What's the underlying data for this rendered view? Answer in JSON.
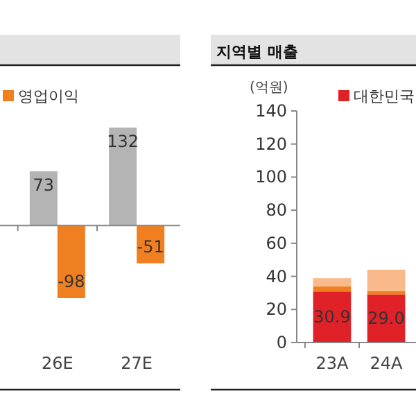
{
  "chart_data": [
    {
      "type": "bar",
      "categories": [
        "26E",
        "27E"
      ],
      "series": [
        {
          "color": "#b4b4b4",
          "values": [
            73,
            132
          ]
        },
        {
          "name": "영업이익",
          "color": "#f07f22",
          "values": [
            -98,
            -51
          ]
        }
      ],
      "data_labels": true,
      "legend": "top left",
      "tick_labels": "x"
    },
    {
      "type": "bar",
      "title": "지역별 매출",
      "ylabel": "(억원)",
      "categories": [
        "23A",
        "24A"
      ],
      "stacked": true,
      "series": [
        {
          "name": "대한민국",
          "color": "#e02128",
          "values": [
            30.9,
            29.0
          ],
          "value_labels": [
            "30.9",
            "29.0"
          ]
        },
        {
          "color": "#f07f22",
          "values": [
            3,
            2
          ]
        },
        {
          "color": "#f9b98a",
          "values": [
            5,
            13
          ]
        }
      ],
      "ylim": [
        0,
        140
      ],
      "yticks": [
        0,
        20,
        40,
        60,
        80,
        100,
        120,
        140
      ],
      "legend": "top right"
    }
  ]
}
